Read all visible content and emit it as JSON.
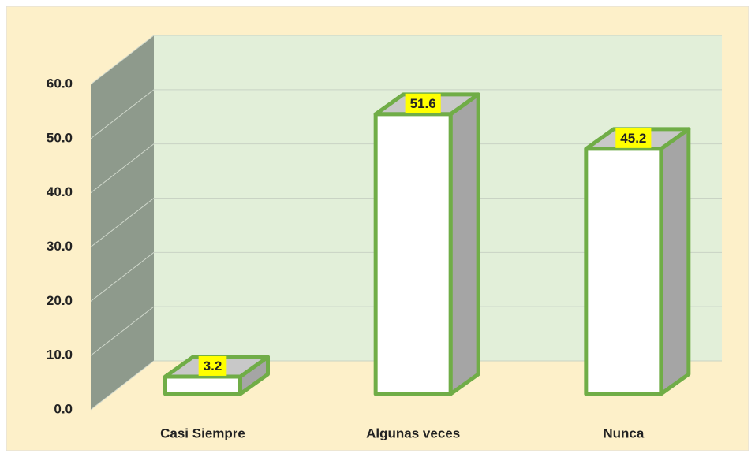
{
  "chart_data": {
    "type": "bar3d",
    "categories": [
      "Casi Siempre",
      "Algunas veces",
      "Nunca"
    ],
    "values": [
      3.2,
      51.6,
      45.2
    ],
    "ylim": [
      0,
      60
    ],
    "yticks": [
      {
        "value": 0,
        "label": "0.0"
      },
      {
        "value": 10,
        "label": "10.0"
      },
      {
        "value": 20,
        "label": "20.0"
      },
      {
        "value": 30,
        "label": "30.0"
      },
      {
        "value": 40,
        "label": "40.0"
      },
      {
        "value": 50,
        "label": "50.0"
      },
      {
        "value": 60,
        "label": "60.0"
      }
    ],
    "color": "#70ad47",
    "grid": true
  }
}
